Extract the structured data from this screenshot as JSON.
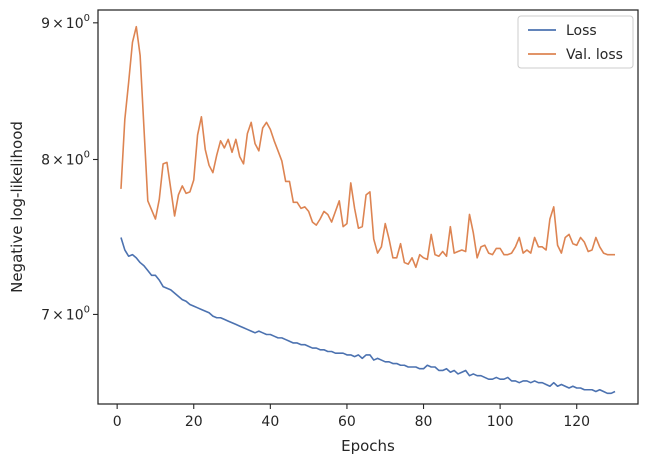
{
  "chart_data": {
    "type": "line",
    "title": "",
    "xlabel": "Epochs",
    "ylabel": "Negative log-likelihood",
    "yscale": "log",
    "xlim": [
      -5,
      136
    ],
    "ylim": [
      6.48,
      9.1
    ],
    "x_ticks": [
      0,
      20,
      40,
      60,
      80,
      100,
      120
    ],
    "x_tick_labels": [
      "0",
      "20",
      "40",
      "60",
      "80",
      "100",
      "120"
    ],
    "y_ticks": [
      7,
      8,
      9
    ],
    "y_tick_labels": [
      {
        "mant": "7",
        "sym": "×",
        "base": "10",
        "exp": "0"
      },
      {
        "mant": "8",
        "sym": "×",
        "base": "10",
        "exp": "0"
      },
      {
        "mant": "9",
        "sym": "×",
        "base": "10",
        "exp": "0"
      }
    ],
    "grid": false,
    "legend_position": "top-right",
    "series": [
      {
        "name": "Loss",
        "color": "#4c72b0",
        "x": [
          1,
          2,
          3,
          4,
          5,
          6,
          7,
          8,
          9,
          10,
          11,
          12,
          13,
          14,
          15,
          16,
          17,
          18,
          19,
          20,
          21,
          22,
          23,
          24,
          25,
          26,
          27,
          28,
          29,
          30,
          31,
          32,
          33,
          34,
          35,
          36,
          37,
          38,
          39,
          40,
          41,
          42,
          43,
          44,
          45,
          46,
          47,
          48,
          49,
          50,
          51,
          52,
          53,
          54,
          55,
          56,
          57,
          58,
          59,
          60,
          61,
          62,
          63,
          64,
          65,
          66,
          67,
          68,
          69,
          70,
          71,
          72,
          73,
          74,
          75,
          76,
          77,
          78,
          79,
          80,
          81,
          82,
          83,
          84,
          85,
          86,
          87,
          88,
          89,
          90,
          91,
          92,
          93,
          94,
          95,
          96,
          97,
          98,
          99,
          100,
          101,
          102,
          103,
          104,
          105,
          106,
          107,
          108,
          109,
          110,
          111,
          112,
          113,
          114,
          115,
          116,
          117,
          118,
          119,
          120,
          121,
          122,
          123,
          124,
          125,
          126,
          127,
          128,
          129,
          130
        ],
        "values": [
          7.48,
          7.4,
          7.36,
          7.37,
          7.35,
          7.32,
          7.3,
          7.27,
          7.24,
          7.24,
          7.21,
          7.17,
          7.16,
          7.15,
          7.13,
          7.11,
          7.09,
          7.08,
          7.06,
          7.05,
          7.04,
          7.03,
          7.02,
          7.01,
          6.99,
          6.98,
          6.98,
          6.97,
          6.96,
          6.95,
          6.94,
          6.93,
          6.92,
          6.91,
          6.9,
          6.89,
          6.9,
          6.89,
          6.88,
          6.88,
          6.87,
          6.86,
          6.86,
          6.85,
          6.84,
          6.83,
          6.83,
          6.82,
          6.82,
          6.81,
          6.8,
          6.8,
          6.79,
          6.79,
          6.78,
          6.78,
          6.77,
          6.77,
          6.77,
          6.76,
          6.76,
          6.75,
          6.76,
          6.74,
          6.76,
          6.76,
          6.73,
          6.74,
          6.73,
          6.72,
          6.72,
          6.71,
          6.71,
          6.7,
          6.7,
          6.69,
          6.69,
          6.69,
          6.68,
          6.68,
          6.7,
          6.69,
          6.69,
          6.67,
          6.67,
          6.68,
          6.66,
          6.67,
          6.65,
          6.66,
          6.67,
          6.64,
          6.65,
          6.64,
          6.64,
          6.63,
          6.62,
          6.62,
          6.63,
          6.62,
          6.62,
          6.63,
          6.61,
          6.61,
          6.6,
          6.61,
          6.61,
          6.6,
          6.61,
          6.6,
          6.6,
          6.59,
          6.58,
          6.6,
          6.58,
          6.59,
          6.58,
          6.57,
          6.58,
          6.57,
          6.57,
          6.56,
          6.56,
          6.56,
          6.55,
          6.56,
          6.55,
          6.54,
          6.54,
          6.55
        ]
      },
      {
        "name": "Val. loss",
        "color": "#dd8452",
        "x": [
          1,
          2,
          3,
          4,
          5,
          6,
          7,
          8,
          9,
          10,
          11,
          12,
          13,
          14,
          15,
          16,
          17,
          18,
          19,
          20,
          21,
          22,
          23,
          24,
          25,
          26,
          27,
          28,
          29,
          30,
          31,
          32,
          33,
          34,
          35,
          36,
          37,
          38,
          39,
          40,
          41,
          42,
          43,
          44,
          45,
          46,
          47,
          48,
          49,
          50,
          51,
          52,
          53,
          54,
          55,
          56,
          57,
          58,
          59,
          60,
          61,
          62,
          63,
          64,
          65,
          66,
          67,
          68,
          69,
          70,
          71,
          72,
          73,
          74,
          75,
          76,
          77,
          78,
          79,
          80,
          81,
          82,
          83,
          84,
          85,
          86,
          87,
          88,
          89,
          90,
          91,
          92,
          93,
          94,
          95,
          96,
          97,
          98,
          99,
          100,
          101,
          102,
          103,
          104,
          105,
          106,
          107,
          108,
          109,
          110,
          111,
          112,
          113,
          114,
          115,
          116,
          117,
          118,
          119,
          120,
          121,
          122,
          123,
          124,
          125,
          126,
          127,
          128,
          129,
          130
        ],
        "values": [
          7.8,
          8.28,
          8.55,
          8.85,
          8.97,
          8.75,
          8.22,
          7.72,
          7.66,
          7.6,
          7.73,
          7.97,
          7.98,
          7.8,
          7.62,
          7.76,
          7.82,
          7.77,
          7.78,
          7.86,
          8.17,
          8.3,
          8.07,
          7.96,
          7.91,
          8.03,
          8.13,
          8.08,
          8.14,
          8.05,
          8.14,
          8.02,
          7.97,
          8.18,
          8.26,
          8.11,
          8.06,
          8.22,
          8.26,
          8.21,
          8.13,
          8.06,
          7.99,
          7.85,
          7.85,
          7.71,
          7.71,
          7.67,
          7.68,
          7.65,
          7.58,
          7.56,
          7.6,
          7.65,
          7.63,
          7.58,
          7.65,
          7.72,
          7.55,
          7.57,
          7.84,
          7.67,
          7.54,
          7.55,
          7.76,
          7.78,
          7.47,
          7.38,
          7.42,
          7.57,
          7.47,
          7.35,
          7.35,
          7.44,
          7.32,
          7.31,
          7.35,
          7.29,
          7.37,
          7.35,
          7.34,
          7.5,
          7.37,
          7.36,
          7.39,
          7.36,
          7.55,
          7.38,
          7.39,
          7.4,
          7.39,
          7.63,
          7.51,
          7.35,
          7.42,
          7.43,
          7.38,
          7.37,
          7.41,
          7.41,
          7.37,
          7.37,
          7.38,
          7.42,
          7.48,
          7.38,
          7.4,
          7.38,
          7.48,
          7.42,
          7.42,
          7.4,
          7.6,
          7.68,
          7.43,
          7.38,
          7.48,
          7.5,
          7.44,
          7.43,
          7.48,
          7.45,
          7.39,
          7.4,
          7.48,
          7.42,
          7.38,
          7.37,
          7.37,
          7.37
        ]
      }
    ]
  }
}
